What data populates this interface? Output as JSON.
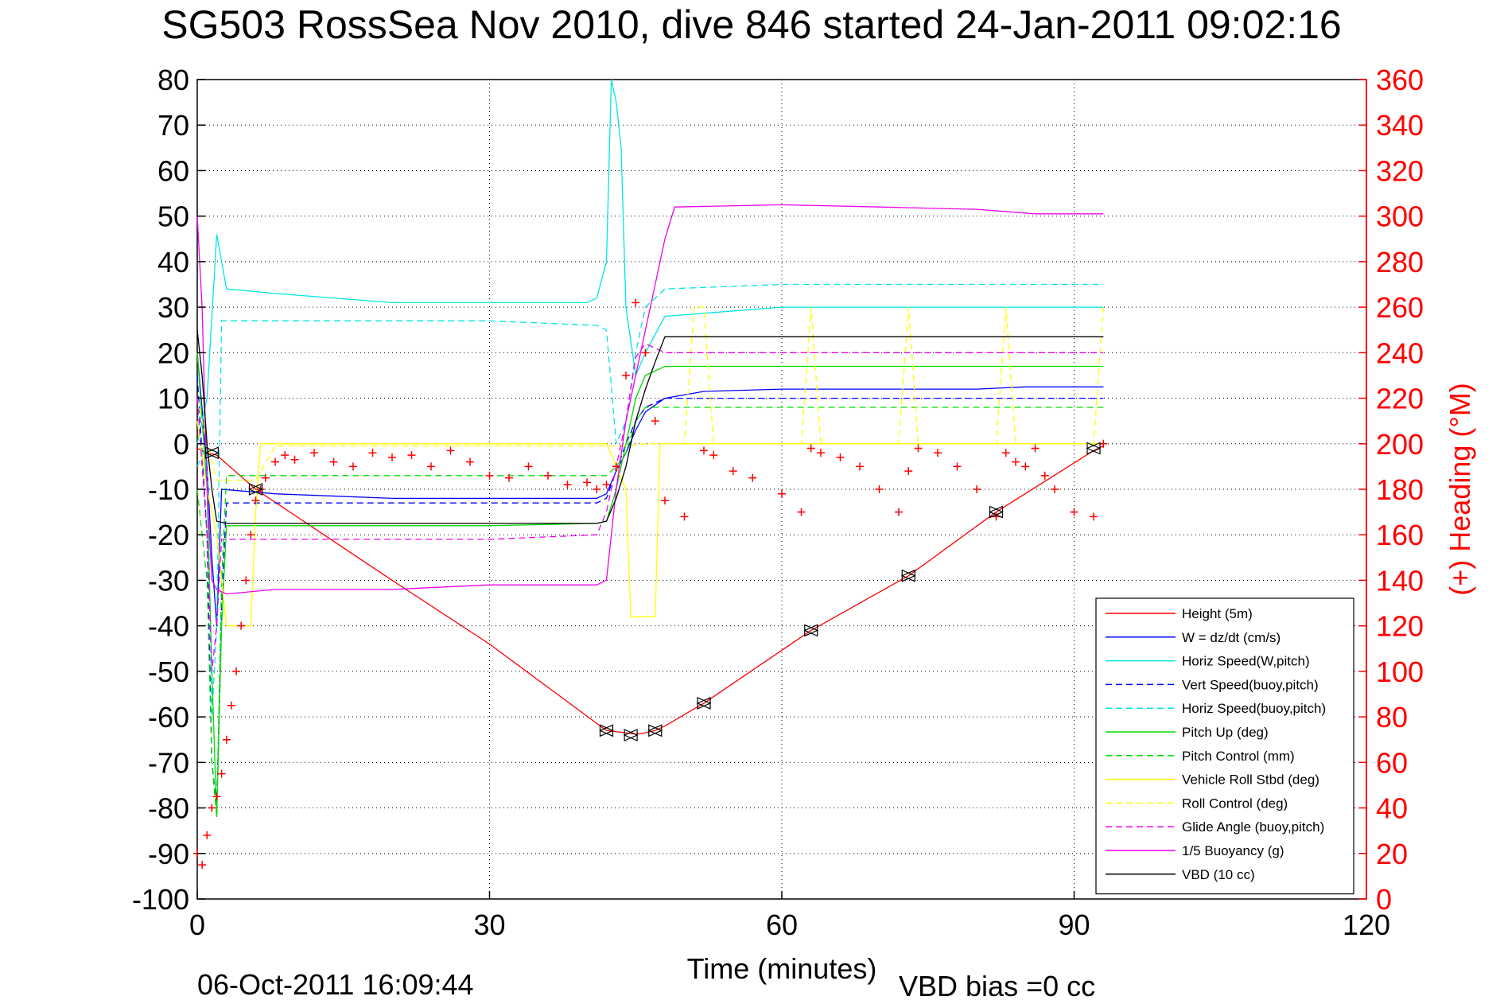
{
  "chart_data": {
    "type": "line",
    "title": "SG503 RossSea Nov 2010, dive 846 started 24-Jan-2011 09:02:16",
    "xlabel": "Time (minutes)",
    "ylabel": "",
    "y2label": "(+) Heading (°M)",
    "xlim": [
      0,
      120
    ],
    "ylim": [
      -100,
      80
    ],
    "y2lim": [
      0,
      360
    ],
    "xticks": [
      0,
      30,
      60,
      90,
      120
    ],
    "yticks": [
      80,
      70,
      60,
      50,
      40,
      30,
      20,
      10,
      0,
      -10,
      -20,
      -30,
      -40,
      -50,
      -60,
      -70,
      -80,
      -90,
      -100
    ],
    "y2ticks": [
      360,
      340,
      320,
      300,
      280,
      260,
      240,
      220,
      200,
      180,
      160,
      140,
      120,
      100,
      80,
      60,
      40,
      20,
      0
    ],
    "grid": true,
    "legend_position": "lower-right",
    "footer_date": "06-Oct-2011 16:09:44",
    "footer_note": "VBD bias =0 cc",
    "series": [
      {
        "name": "Height (5m)",
        "color": "#ff0000",
        "style": "solid",
        "x": [
          0,
          0.5,
          1,
          1.5,
          2,
          6,
          20,
          30,
          42,
          44,
          45,
          46,
          47,
          48,
          52,
          63,
          73,
          82,
          92,
          93
        ],
        "y": [
          -1,
          -1.5,
          -2,
          -2.2,
          -2.5,
          -10,
          -30,
          -44,
          -63,
          -63.5,
          -63.8,
          -63.5,
          -63,
          -62,
          -57,
          -41,
          -29,
          -15,
          -1.5,
          -0.5
        ]
      },
      {
        "name": "W = dz/dt (cm/s)",
        "color": "#0000ff",
        "style": "solid",
        "x": [
          0,
          1,
          1.5,
          2,
          2.5,
          8,
          20,
          30,
          41,
          42,
          43,
          44,
          45,
          46,
          48,
          52,
          60,
          70,
          80,
          85,
          90,
          93
        ],
        "y": [
          20,
          -5,
          -25,
          -40,
          -10,
          -11,
          -12,
          -12,
          -12,
          -11,
          -6,
          -2,
          3,
          7,
          10,
          11.5,
          12,
          12,
          12,
          12.5,
          12.5,
          12.5
        ]
      },
      {
        "name": "Horiz Speed(W,pitch)",
        "color": "#00e5e5",
        "style": "solid",
        "x": [
          0,
          1,
          2,
          3,
          8,
          20,
          30,
          40,
          41,
          42,
          42.5,
          43,
          43.5,
          44,
          45,
          46,
          48,
          60,
          70,
          80,
          90,
          93
        ],
        "y": [
          0,
          10,
          46,
          34,
          33,
          31,
          31,
          31,
          32,
          40,
          80,
          75,
          65,
          30,
          15,
          20,
          28,
          30,
          30,
          30,
          30,
          30
        ]
      },
      {
        "name": "Vert Speed(buoy,pitch)",
        "color": "#0000ff",
        "style": "dashed",
        "x": [
          0,
          1,
          1.5,
          2,
          2.5,
          3,
          8,
          20,
          30,
          41,
          42,
          43,
          44,
          45,
          46,
          48,
          60,
          70,
          80,
          90,
          93
        ],
        "y": [
          15,
          -20,
          -70,
          -80,
          -35,
          -13,
          -13,
          -13,
          -13,
          -13,
          -12,
          -6,
          0,
          5,
          8,
          10,
          10,
          10,
          10,
          10,
          10
        ]
      },
      {
        "name": "Horiz Speed(buoy,pitch)",
        "color": "#00e5e5",
        "style": "dashed",
        "x": [
          0,
          1,
          1.5,
          2,
          2.5,
          8,
          20,
          30,
          41,
          42,
          43,
          44,
          45,
          46,
          48,
          60,
          70,
          80,
          90,
          93
        ],
        "y": [
          -5,
          0,
          -60,
          -40,
          27,
          27,
          27,
          27,
          26,
          25,
          0,
          5,
          20,
          30,
          34,
          35,
          35,
          35,
          35,
          35
        ]
      },
      {
        "name": "Pitch Up (deg)",
        "color": "#00dd00",
        "style": "solid",
        "x": [
          0,
          1,
          1.5,
          2,
          2.5,
          3,
          8,
          20,
          30,
          41,
          42,
          43,
          44,
          45,
          46,
          48,
          52,
          60,
          70,
          80,
          90,
          93
        ],
        "y": [
          20,
          -10,
          -50,
          -82,
          -40,
          -18,
          -18,
          -18,
          -18,
          -17.5,
          -17,
          -10,
          0,
          10,
          15,
          17,
          17,
          17,
          17,
          17,
          17,
          17
        ]
      },
      {
        "name": "Pitch Control (mm)",
        "color": "#00dd00",
        "style": "dashed",
        "x": [
          0,
          1,
          1.5,
          2,
          2.5,
          3,
          8,
          20,
          30,
          41,
          42,
          43,
          44,
          45,
          46,
          48,
          60,
          70,
          80,
          90,
          93
        ],
        "y": [
          -10,
          -30,
          -70,
          -82,
          -30,
          -7,
          -7,
          -7,
          -7,
          -7,
          -7,
          -5,
          -2,
          5,
          8,
          8,
          8,
          8,
          8,
          8,
          8
        ]
      },
      {
        "name": "Vehicle Roll Stbd (deg)",
        "color": "#ffff00",
        "style": "solid",
        "x": [
          0,
          1,
          2,
          3,
          5.5,
          6,
          6.5,
          20,
          40,
          42,
          43,
          44,
          44.5,
          47,
          47.5,
          52,
          60,
          70,
          80,
          90,
          93
        ],
        "y": [
          5,
          -10,
          -20,
          -40,
          -40,
          -15,
          0,
          0,
          0,
          0,
          -5,
          -10,
          -38,
          -38,
          0,
          0,
          0,
          0,
          0,
          0,
          0
        ]
      },
      {
        "name": "Roll Control (deg)",
        "color": "#ffff00",
        "style": "dashed",
        "x": [
          0,
          1,
          2,
          6,
          8,
          20,
          30,
          40,
          42,
          44,
          46,
          50,
          51,
          52,
          53,
          62,
          63,
          64,
          72,
          73,
          74,
          82,
          83,
          84,
          92,
          93
        ],
        "y": [
          10,
          0,
          -8,
          -8,
          -0.5,
          -0.5,
          -0.5,
          -0.5,
          -0.5,
          -0.5,
          0,
          0,
          30,
          30,
          0,
          0,
          30,
          0,
          0,
          30,
          0,
          0,
          30,
          0,
          0,
          30
        ]
      },
      {
        "name": "Glide Angle (buoy,pitch)",
        "color": "#ee00ee",
        "style": "dashed",
        "x": [
          0,
          1,
          1.5,
          2,
          2.5,
          3,
          8,
          20,
          30,
          41,
          42,
          43,
          44,
          45,
          46,
          48,
          60,
          70,
          80,
          90,
          93
        ],
        "y": [
          10,
          -20,
          -50,
          -40,
          -21,
          -21,
          -21,
          -21,
          -21,
          -20,
          -15,
          -5,
          5,
          19,
          22,
          20,
          20,
          20,
          20,
          20,
          20
        ]
      },
      {
        "name": "1/5 Buoyancy (g)",
        "color": "#ee00ee",
        "style": "solid",
        "x": [
          0,
          0.5,
          1,
          1.5,
          2,
          3,
          8,
          20,
          30,
          41,
          42,
          43,
          44,
          45,
          46,
          47,
          48,
          49,
          60,
          70,
          80,
          86,
          90,
          93
        ],
        "y": [
          50,
          30,
          -10,
          -30,
          -32,
          -33,
          -32,
          -32,
          -31,
          -31,
          -30,
          -10,
          5,
          15,
          25,
          35,
          45,
          52,
          52.5,
          52,
          51.5,
          50.5,
          50.5,
          50.5
        ]
      },
      {
        "name": "VBD (10 cc)",
        "color": "#000000",
        "style": "solid",
        "x": [
          0,
          0.5,
          1,
          1.5,
          2,
          3,
          8,
          20,
          30,
          41,
          42,
          43,
          44,
          45,
          46,
          47,
          48,
          60,
          70,
          80,
          90,
          93
        ],
        "y": [
          25,
          15,
          0,
          -10,
          -17,
          -17.5,
          -17.5,
          -17.5,
          -17.5,
          -17.5,
          -17,
          -12,
          -5,
          5,
          12,
          18,
          23.5,
          23.5,
          23.5,
          23.5,
          23.5,
          23.5
        ]
      },
      {
        "name": "(+) Heading",
        "color": "#ff0000",
        "style": "plus",
        "axis": "right",
        "x": [
          0,
          0.5,
          1,
          1.5,
          2,
          2.5,
          3,
          3.5,
          4,
          4.5,
          5,
          5.5,
          6,
          6.5,
          7,
          8,
          9,
          10,
          12,
          14,
          16,
          18,
          20,
          22,
          24,
          26,
          28,
          30,
          32,
          34,
          36,
          38,
          40,
          41,
          42,
          43,
          44,
          45,
          46,
          47,
          48,
          50,
          52,
          53,
          55,
          57,
          60,
          62,
          63,
          64,
          66,
          68,
          70,
          72,
          73,
          74,
          76,
          78,
          80,
          82,
          83,
          84,
          85,
          86,
          87,
          88,
          90,
          92,
          93
        ],
        "y": [
          20,
          15,
          28,
          40,
          45,
          55,
          70,
          85,
          100,
          120,
          140,
          160,
          175,
          180,
          185,
          192,
          195,
          193,
          196,
          192,
          190,
          196,
          194,
          195,
          190,
          197,
          192,
          186,
          185,
          190,
          186,
          182,
          183,
          180,
          182,
          190,
          230,
          262,
          240,
          210,
          175,
          168,
          197,
          195,
          188,
          185,
          178,
          170,
          198,
          196,
          194,
          190,
          180,
          170,
          188,
          198,
          196,
          190,
          180,
          168,
          196,
          192,
          190,
          198,
          186,
          180,
          170,
          168,
          200
        ]
      }
    ],
    "markers": [
      {
        "x": 1.5,
        "y": -2
      },
      {
        "x": 6,
        "y": -10
      },
      {
        "x": 42,
        "y": -63
      },
      {
        "x": 44.5,
        "y": -64
      },
      {
        "x": 47,
        "y": -63
      },
      {
        "x": 52,
        "y": -57
      },
      {
        "x": 63,
        "y": -41
      },
      {
        "x": 73,
        "y": -29
      },
      {
        "x": 82,
        "y": -15
      },
      {
        "x": 92,
        "y": -1
      }
    ]
  }
}
